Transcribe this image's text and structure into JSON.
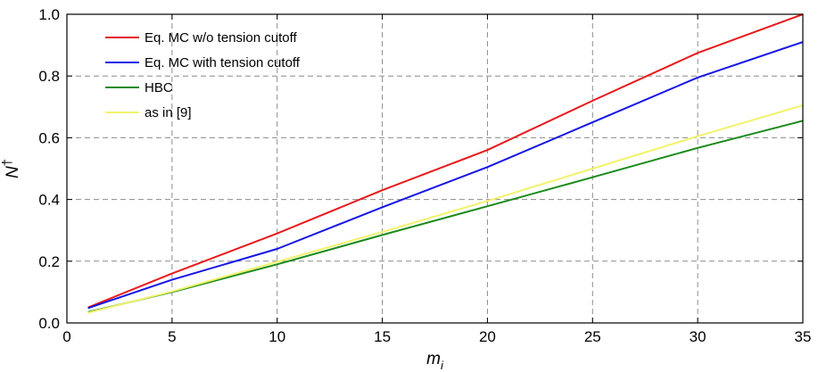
{
  "chart_data": {
    "type": "line",
    "xlabel": "m",
    "xlabel_sub": "i",
    "ylabel": "N",
    "ylabel_sup": "†",
    "xlim": [
      0,
      35
    ],
    "ylim": [
      0,
      1.0
    ],
    "xticks": [
      0,
      5,
      10,
      15,
      20,
      25,
      30,
      35
    ],
    "yticks": [
      0.0,
      0.2,
      0.4,
      0.6,
      0.8,
      1.0
    ],
    "xtick_labels": [
      "0",
      "5",
      "10",
      "15",
      "20",
      "25",
      "30",
      "35"
    ],
    "ytick_labels": [
      "0.0",
      "0.2",
      "0.4",
      "0.6",
      "0.8",
      "1.0"
    ],
    "grid": true,
    "legend_position": "top-left",
    "series": [
      {
        "name": "Eq. MC w/o tension cutoff",
        "color": "#e8191b",
        "x": [
          1,
          5,
          10,
          15,
          20,
          25,
          30,
          35
        ],
        "y": [
          0.05,
          0.16,
          0.29,
          0.43,
          0.56,
          0.72,
          0.875,
          1.0
        ]
      },
      {
        "name": "Eq. MC with tension cutoff",
        "color": "#1414e6",
        "x": [
          1,
          5,
          10,
          15,
          20,
          25,
          30,
          35
        ],
        "y": [
          0.048,
          0.14,
          0.24,
          0.375,
          0.505,
          0.65,
          0.795,
          0.91
        ]
      },
      {
        "name": "HBC",
        "color": "#1a8a1a",
        "x": [
          1,
          5,
          10,
          15,
          20,
          25,
          30,
          35
        ],
        "y": [
          0.035,
          0.1,
          0.19,
          0.285,
          0.378,
          0.472,
          0.567,
          0.655
        ]
      },
      {
        "name": "as in [9]",
        "color": "#f2f26a",
        "x": [
          1,
          5,
          10,
          15,
          20,
          25,
          30,
          35
        ],
        "y": [
          0.033,
          0.102,
          0.198,
          0.295,
          0.395,
          0.5,
          0.605,
          0.705
        ]
      }
    ]
  }
}
